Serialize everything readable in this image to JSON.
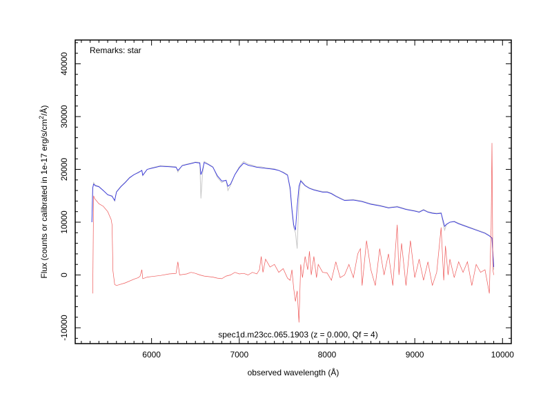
{
  "chart_data": {
    "type": "line",
    "title": "",
    "xlabel": "observed wavelength (Å)",
    "ylabel_main": "Flux (counts or calibrated in 1e-17 erg/s/cm",
    "ylabel_sup": "2",
    "ylabel_end": "/Å)",
    "xlim": [
      5130,
      10100
    ],
    "ylim": [
      -13000,
      44500
    ],
    "x_ticks": [
      6000,
      7000,
      8000,
      9000,
      10000
    ],
    "y_ticks": [
      -10000,
      0,
      10000,
      20000,
      30000,
      40000
    ],
    "x_tick_labels": [
      "6000",
      "7000",
      "8000",
      "9000",
      "10000"
    ],
    "y_tick_labels": [
      "-10000",
      "0",
      "10000",
      "20000",
      "30000",
      "40000"
    ],
    "annotations": {
      "remarks": "Remarks: star",
      "object": "spec1d.m23cc.065.1903 (z = 0.000, Qf = 4)"
    },
    "series": [
      {
        "role": "raw",
        "color": "#c8c8c8",
        "x": [
          5320,
          5330,
          5340,
          5360,
          5400,
          5450,
          5500,
          5550,
          5580,
          5600,
          5650,
          5700,
          5750,
          5800,
          5850,
          5890,
          5900,
          5950,
          6000,
          6100,
          6200,
          6280,
          6300,
          6350,
          6400,
          6450,
          6500,
          6550,
          6563,
          6580,
          6600,
          6650,
          6700,
          6750,
          6800,
          6850,
          6870,
          6900,
          6950,
          7000,
          7050,
          7100,
          7150,
          7200,
          7250,
          7300,
          7350,
          7400,
          7450,
          7500,
          7550,
          7580,
          7600,
          7620,
          7640,
          7660,
          7680,
          7700,
          7750,
          7800,
          7850,
          7900,
          7950,
          8000,
          8050,
          8100,
          8150,
          8200,
          8300,
          8400,
          8500,
          8600,
          8700,
          8800,
          8900,
          9000,
          9050,
          9100,
          9150,
          9200,
          9250,
          9300,
          9320,
          9340,
          9360,
          9400,
          9450,
          9500,
          9600,
          9700,
          9800,
          9850,
          9880,
          9900
        ],
        "y": [
          10000,
          16500,
          17500,
          17000,
          16800,
          16000,
          15200,
          15000,
          14000,
          15800,
          16800,
          17600,
          18500,
          19000,
          19500,
          19800,
          18800,
          20000,
          20300,
          20700,
          20600,
          20500,
          19500,
          20800,
          21000,
          21200,
          21400,
          21300,
          14500,
          19000,
          21500,
          21000,
          20500,
          18500,
          17500,
          18000,
          16000,
          17000,
          19000,
          20500,
          21500,
          21000,
          20800,
          20500,
          20500,
          20300,
          20200,
          20100,
          19800,
          19500,
          19000,
          16000,
          12000,
          9000,
          8000,
          5000,
          15000,
          18000,
          17000,
          16500,
          16200,
          16000,
          15800,
          15800,
          15500,
          15000,
          14600,
          14200,
          14300,
          14000,
          13500,
          13200,
          12800,
          13000,
          12500,
          12200,
          12000,
          12400,
          12000,
          11800,
          11700,
          11800,
          10000,
          8500,
          9500,
          10000,
          10200,
          9800,
          9200,
          8600,
          8000,
          7500,
          7000,
          1000
        ]
      },
      {
        "role": "smoothed",
        "color": "#3333dd",
        "x": [
          5320,
          5330,
          5340,
          5360,
          5400,
          5450,
          5500,
          5550,
          5580,
          5600,
          5650,
          5700,
          5750,
          5800,
          5850,
          5890,
          5900,
          5950,
          6000,
          6100,
          6200,
          6280,
          6300,
          6350,
          6400,
          6450,
          6500,
          6550,
          6563,
          6580,
          6600,
          6650,
          6700,
          6750,
          6800,
          6850,
          6870,
          6900,
          6950,
          7000,
          7050,
          7100,
          7150,
          7200,
          7250,
          7300,
          7350,
          7400,
          7450,
          7500,
          7550,
          7580,
          7600,
          7620,
          7640,
          7660,
          7680,
          7700,
          7750,
          7800,
          7850,
          7900,
          7950,
          8000,
          8050,
          8100,
          8150,
          8200,
          8300,
          8400,
          8500,
          8600,
          8700,
          8800,
          8900,
          9000,
          9050,
          9100,
          9150,
          9200,
          9250,
          9300,
          9320,
          9340,
          9360,
          9400,
          9450,
          9500,
          9600,
          9700,
          9800,
          9850,
          9880,
          9900
        ],
        "y": [
          10000,
          16500,
          17200,
          16900,
          16700,
          16000,
          15200,
          14900,
          14100,
          15700,
          16700,
          17500,
          18400,
          19000,
          19400,
          19800,
          18900,
          20000,
          20200,
          20600,
          20500,
          20400,
          19800,
          20700,
          20900,
          21100,
          21300,
          21200,
          19000,
          19800,
          21300,
          20900,
          20400,
          18800,
          17800,
          17900,
          16800,
          17200,
          19000,
          20300,
          21200,
          20800,
          20600,
          20400,
          20300,
          20200,
          20100,
          20000,
          19800,
          19400,
          18900,
          16500,
          12500,
          9500,
          8500,
          13000,
          16800,
          17800,
          16900,
          16400,
          16100,
          15900,
          15700,
          15700,
          15400,
          14900,
          14500,
          14100,
          14200,
          13900,
          13400,
          13100,
          12700,
          12900,
          12400,
          12100,
          11900,
          12300,
          11900,
          11700,
          11600,
          11700,
          10500,
          9200,
          9600,
          10000,
          10100,
          9700,
          9100,
          8500,
          7900,
          7400,
          7000,
          1500
        ]
      },
      {
        "role": "error",
        "color": "#ee5555",
        "x": [
          5330,
          5340,
          5350,
          5400,
          5450,
          5500,
          5540,
          5550,
          5560,
          5580,
          5600,
          5700,
          5800,
          5850,
          5870,
          5890,
          5900,
          5950,
          6000,
          6100,
          6200,
          6280,
          6300,
          6320,
          6400,
          6450,
          6500,
          6550,
          6600,
          6700,
          6750,
          6800,
          6850,
          6900,
          6950,
          7000,
          7050,
          7100,
          7150,
          7200,
          7230,
          7250,
          7270,
          7300,
          7350,
          7400,
          7450,
          7500,
          7550,
          7580,
          7600,
          7620,
          7640,
          7660,
          7680,
          7700,
          7720,
          7750,
          7780,
          7800,
          7820,
          7850,
          7880,
          7900,
          7950,
          8000,
          8050,
          8100,
          8150,
          8200,
          8250,
          8300,
          8350,
          8380,
          8400,
          8450,
          8500,
          8550,
          8600,
          8650,
          8700,
          8750,
          8800,
          8820,
          8850,
          8900,
          8950,
          9000,
          9050,
          9100,
          9150,
          9200,
          9250,
          9300,
          9330,
          9350,
          9380,
          9400,
          9450,
          9500,
          9550,
          9600,
          9650,
          9700,
          9750,
          9800,
          9850,
          9870,
          9880,
          9890,
          9900
        ],
        "y": [
          -3500,
          15000,
          14500,
          13500,
          13000,
          12000,
          10500,
          9500,
          800,
          -1800,
          -2000,
          -1500,
          -800,
          -500,
          -200,
          1000,
          -700,
          -400,
          -300,
          -100,
          200,
          300,
          2500,
          0,
          200,
          500,
          300,
          0,
          -200,
          -400,
          -600,
          -700,
          -200,
          0,
          500,
          200,
          300,
          0,
          500,
          200,
          1000,
          3500,
          500,
          3000,
          1500,
          2000,
          500,
          1200,
          -600,
          -1000,
          1000,
          -2500,
          -5000,
          -3000,
          -9000,
          2000,
          -500,
          3500,
          1000,
          4500,
          0,
          3500,
          -500,
          2000,
          500,
          400,
          -1000,
          2500,
          -500,
          0,
          2000,
          -500,
          4000,
          5000,
          -2000,
          6500,
          1000,
          -2000,
          5000,
          0,
          4000,
          -2000,
          9500,
          0,
          6000,
          -2000,
          6500,
          -500,
          3000,
          -1000,
          2500,
          -2000,
          500,
          9000,
          -1000,
          5500,
          0,
          3000,
          -500,
          2500,
          500,
          2500,
          -2000,
          2000,
          500,
          1000,
          -3500,
          9000,
          25000,
          1000,
          0
        ]
      }
    ]
  }
}
